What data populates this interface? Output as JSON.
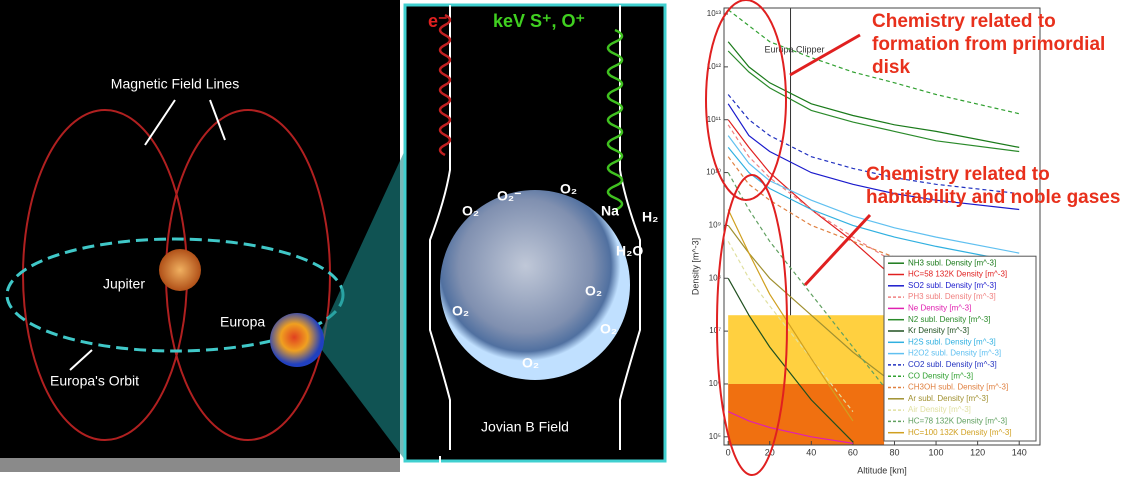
{
  "diagram": {
    "field_lines_label": "Magnetic Field Lines",
    "jupiter_label": "Jupiter",
    "europa_label": "Europa",
    "orbit_label": "Europa's Orbit",
    "electron_label": "e⁻",
    "ions_label": "keV S⁺, O⁺",
    "o2_minus_label": "O₂⁻",
    "o2_labels": [
      "O₂",
      "O₂",
      "O₂",
      "O₂",
      "O₂",
      "O₂"
    ],
    "na_label": "Na",
    "h2_label": "H₂",
    "h2o_label": "H₂O",
    "b_field_label": "Jovian B Field"
  },
  "annotations": [
    "Chemistry related to formation from primordial disk",
    "Chemistry related to habitability and noble gases"
  ],
  "chart_data": {
    "type": "line",
    "xlabel": "Altitude [km]",
    "ylabel": "Density [m^-3]",
    "log_y": true,
    "xlim": [
      -2,
      150
    ],
    "ylim": [
      70000,
      13000000000000
    ],
    "xticks": [
      0,
      20,
      40,
      60,
      80,
      100,
      120,
      140
    ],
    "yticks": [
      {
        "value": 100000,
        "label": "10⁵"
      },
      {
        "value": 1000000,
        "label": "10⁶"
      },
      {
        "value": 10000000,
        "label": "10⁷"
      },
      {
        "value": 100000000,
        "label": "10⁸"
      },
      {
        "value": 1000000000,
        "label": "10⁹"
      },
      {
        "value": 10000000000,
        "label": "10¹⁰"
      },
      {
        "value": 100000000000,
        "label": "10¹¹"
      },
      {
        "value": 1000000000000,
        "label": "10¹²"
      },
      {
        "value": 10000000000000,
        "label": "10¹³"
      }
    ],
    "legend": "lower right",
    "bands": [
      {
        "color": "#ffd040",
        "x": [
          0,
          75
        ],
        "y": [
          1000000,
          20000000
        ]
      },
      {
        "color": "#f07010",
        "x": [
          0,
          75
        ],
        "y": [
          70000,
          1000000
        ]
      }
    ],
    "vline": {
      "x": 30,
      "y": [
        20000000,
        13000000000000
      ],
      "label": "Europa Clipper"
    },
    "x": [
      0,
      10,
      20,
      40,
      60,
      80,
      100,
      140
    ],
    "series": [
      {
        "name": "NH3 subl. Density [m^-3]",
        "color": "#1a7a1a",
        "dashed": false,
        "values": [
          3000000000000.0,
          1000000000000.0,
          500000000000.0,
          200000000000.0,
          120000000000.0,
          80000000000.0,
          60000000000.0,
          30000000000.0
        ]
      },
      {
        "name": "HC=58 132K Density [m^-3]",
        "color": "#e02020",
        "dashed": false,
        "values": [
          100000000000.0,
          30000000000.0,
          10000000000.0,
          2000000000.0,
          500000000.0,
          100000000.0,
          50000000.0,
          15000000.0
        ]
      },
      {
        "name": "SO2 subl. Density [m^-3]",
        "color": "#1a1acc",
        "dashed": false,
        "values": [
          200000000000.0,
          50000000000.0,
          25000000000.0,
          10000000000.0,
          6000000000.0,
          4000000000.0,
          3000000000.0,
          2000000000.0
        ]
      },
      {
        "name": "PH3 subl. Density [m^-3]",
        "color": "#f08080",
        "dashed": true,
        "values": [
          80000000000.0,
          20000000000.0,
          8000000000.0,
          2000000000.0,
          600000000.0,
          200000000.0,
          null,
          null
        ]
      },
      {
        "name": "Ne Density [m^-3]",
        "color": "#e020b0",
        "dashed": false,
        "values": [
          300000.0,
          200000.0,
          150000.0,
          100000.0,
          75000,
          null,
          null,
          null
        ]
      },
      {
        "name": "N2 subl. Density [m^-3]",
        "color": "#2a8a2a",
        "dashed": false,
        "values": [
          2000000000000.0,
          800000000000.0,
          400000000000.0,
          150000000000.0,
          90000000000.0,
          60000000000.0,
          40000000000.0,
          25000000000.0
        ]
      },
      {
        "name": "Kr Density [m^-3]",
        "color": "#205020",
        "dashed": false,
        "values": [
          100000000.0,
          20000000.0,
          5000000.0,
          500000.0,
          80000,
          null,
          null,
          null
        ]
      },
      {
        "name": "H2S subl. Density [m^-3]",
        "color": "#30b0e0",
        "dashed": false,
        "values": [
          30000000000.0,
          10000000000.0,
          5000000000.0,
          2000000000.0,
          1000000000.0,
          600000000.0,
          400000000.0,
          200000000.0
        ]
      },
      {
        "name": "H2O2 subl. Density [m^-3]",
        "color": "#60c0f0",
        "dashed": false,
        "values": [
          50000000000.0,
          15000000000.0,
          7000000000.0,
          3000000000.0,
          1500000000.0,
          900000000.0,
          600000000.0,
          300000000.0
        ]
      },
      {
        "name": "CO2 subl. Density [m^-3]",
        "color": "#2030c0",
        "dashed": true,
        "values": [
          300000000000.0,
          100000000000.0,
          50000000000.0,
          20000000000.0,
          12000000000.0,
          8000000000.0,
          6000000000.0,
          4000000000.0
        ]
      },
      {
        "name": "CO Density [m^-3]",
        "color": "#30a030",
        "dashed": true,
        "values": [
          12000000000000.0,
          6000000000000.0,
          3000000000000.0,
          1500000000000.0,
          800000000000.0,
          500000000000.0,
          300000000000.0,
          130000000000.0
        ]
      },
      {
        "name": "CH3OH subl. Density [m^-3]",
        "color": "#e08040",
        "dashed": true,
        "values": [
          20000000000.0,
          6000000000.0,
          3000000000.0,
          1000000000.0,
          500000000.0,
          250000000.0,
          150000000.0,
          null
        ]
      },
      {
        "name": "Ar subl. Density [m^-3]",
        "color": "#a09030",
        "dashed": false,
        "values": [
          1000000000.0,
          300000000.0,
          100000000.0,
          20000000.0,
          4000000.0,
          1000000.0,
          null,
          null
        ]
      },
      {
        "name": "Air Density [m^-3]",
        "color": "#e0e0a0",
        "dashed": true,
        "values": [
          500000000.0,
          100000000.0,
          30000000.0,
          3000000.0,
          300000.0,
          null,
          null,
          null
        ]
      },
      {
        "name": "HC=78 132K Density [m^-3]",
        "color": "#60a060",
        "dashed": true,
        "values": [
          10000000000.0,
          2000000000.0,
          500000000.0,
          50000000.0,
          5000000.0,
          500000.0,
          null,
          null
        ]
      },
      {
        "name": "HC=100 132K Density [m^-3]",
        "color": "#d0a020",
        "dashed": false,
        "values": [
          2000000000.0,
          300000000.0,
          50000000.0,
          3000000.0,
          200000.0,
          null,
          null,
          null
        ]
      }
    ]
  }
}
